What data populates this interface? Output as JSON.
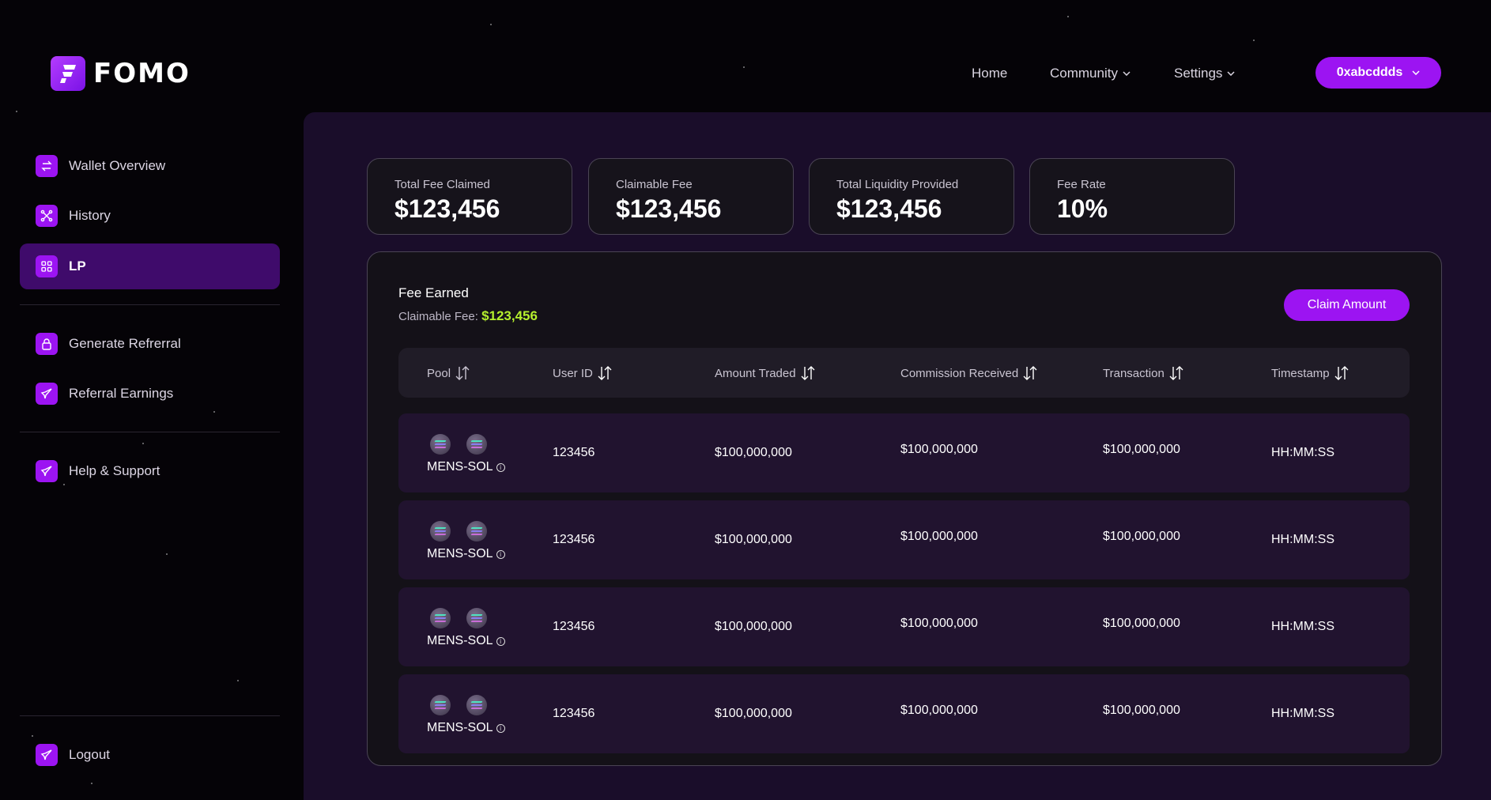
{
  "brand": {
    "name": "FOMO"
  },
  "nav": {
    "home": "Home",
    "community": "Community",
    "settings": "Settings",
    "wallet": "0xabcddds"
  },
  "sidebar": {
    "items": [
      {
        "label": "Wallet Overview",
        "icon": "swap-icon"
      },
      {
        "label": "History",
        "icon": "network-icon"
      },
      {
        "label": "LP",
        "icon": "grid-icon",
        "active": true
      },
      {
        "label": "Generate Refrerral",
        "icon": "lock-icon"
      },
      {
        "label": "Referral Earnings",
        "icon": "rocket-icon"
      },
      {
        "label": "Help & Support",
        "icon": "rocket-icon"
      },
      {
        "label": "Logout",
        "icon": "rocket-icon"
      }
    ]
  },
  "stats": [
    {
      "label": "Total Fee Claimed",
      "value": "$123,456"
    },
    {
      "label": "Claimable Fee",
      "value": "$123,456"
    },
    {
      "label": "Total Liquidity Provided",
      "value": "$123,456"
    },
    {
      "label": "Fee Rate",
      "value": "10%"
    }
  ],
  "fee_panel": {
    "title": "Fee Earned",
    "claimable_label": "Claimable Fee:",
    "claimable_value": "$123,456",
    "claim_button": "Claim Amount"
  },
  "table": {
    "columns": [
      "Pool",
      "User ID",
      "Amount Traded",
      "Commission Received",
      "Transaction",
      "Timestamp"
    ],
    "rows": [
      {
        "pool": "MENS-SOL",
        "user_id": "123456",
        "amount": "$100,000,000",
        "commission": "$100,000,000",
        "transaction": "$100,000,000",
        "timestamp": "HH:MM:SS"
      },
      {
        "pool": "MENS-SOL",
        "user_id": "123456",
        "amount": "$100,000,000",
        "commission": "$100,000,000",
        "transaction": "$100,000,000",
        "timestamp": "HH:MM:SS"
      },
      {
        "pool": "MENS-SOL",
        "user_id": "123456",
        "amount": "$100,000,000",
        "commission": "$100,000,000",
        "transaction": "$100,000,000",
        "timestamp": "HH:MM:SS"
      },
      {
        "pool": "MENS-SOL",
        "user_id": "123456",
        "amount": "$100,000,000",
        "commission": "$100,000,000",
        "transaction": "$100,000,000",
        "timestamp": "HH:MM:SS"
      }
    ]
  },
  "colors": {
    "accent": "#9c14f2",
    "active_bg": "#3f0b6b",
    "highlight_green": "#b5f02e",
    "panel_bg": "#1a0d2a"
  }
}
